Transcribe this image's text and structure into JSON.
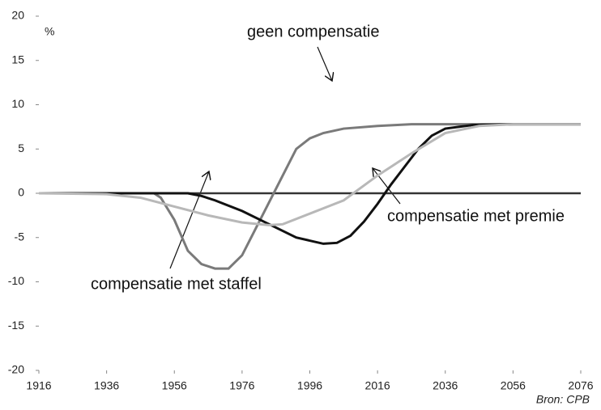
{
  "chart_data": {
    "type": "line",
    "y_unit": "%",
    "source": "Bron: CPB",
    "xlim": [
      1916,
      2076
    ],
    "xticks": [
      1916,
      1936,
      1956,
      1976,
      1996,
      2016,
      2036,
      2056,
      2076
    ],
    "ylim": [
      -20,
      20
    ],
    "yticks": [
      20,
      15,
      10,
      5,
      0,
      -5,
      -10,
      -15,
      -20
    ],
    "annotations": [
      "geen compensatie",
      "compensatie met staffel",
      "compensatie met premie"
    ],
    "series": [
      {
        "name": "geen compensatie",
        "color": "#7a7a7a",
        "x": [
          1916,
          1930,
          1950,
          1952,
          1956,
          1960,
          1964,
          1968,
          1972,
          1976,
          1980,
          1984,
          1988,
          1992,
          1996,
          2000,
          2006,
          2016,
          2026,
          2076
        ],
        "values": [
          0,
          0,
          0,
          -0.5,
          -3,
          -6.5,
          -8,
          -8.5,
          -8.5,
          -7,
          -4,
          -1,
          2,
          5,
          6.2,
          6.8,
          7.3,
          7.6,
          7.8,
          7.8
        ]
      },
      {
        "name": "compensatie met staffel",
        "color": "#111111",
        "x": [
          1916,
          1960,
          1964,
          1968,
          1976,
          1984,
          1992,
          2000,
          2004,
          2008,
          2012,
          2016,
          2020,
          2024,
          2028,
          2032,
          2036,
          2044,
          2056,
          2076
        ],
        "values": [
          0,
          0,
          -0.3,
          -0.8,
          -2,
          -3.5,
          -5,
          -5.7,
          -5.6,
          -4.8,
          -3.2,
          -1.2,
          1,
          3,
          5,
          6.5,
          7.3,
          7.7,
          7.8,
          7.8
        ]
      },
      {
        "name": "compensatie met premie",
        "color": "#b8b8b8",
        "x": [
          1916,
          1936,
          1946,
          1956,
          1966,
          1976,
          1984,
          1988,
          1996,
          2006,
          2016,
          2026,
          2036,
          2046,
          2056,
          2076
        ],
        "values": [
          0,
          -0.1,
          -0.5,
          -1.5,
          -2.5,
          -3.3,
          -3.6,
          -3.5,
          -2.3,
          -0.8,
          2,
          4.5,
          6.8,
          7.6,
          7.8,
          7.8
        ]
      }
    ]
  }
}
